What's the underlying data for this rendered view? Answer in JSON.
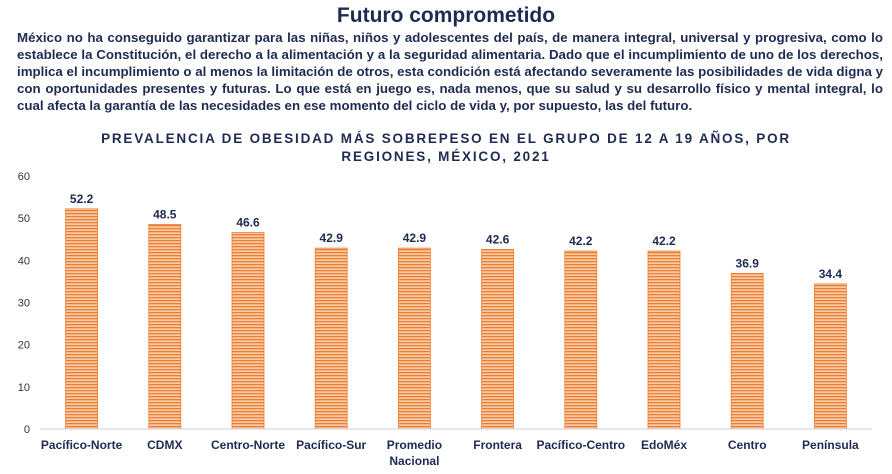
{
  "header": {
    "title": "Futuro comprometido",
    "paragraph": "México no ha conseguido garantizar para las niñas, niños y adolescentes del país, de manera integral, universal y progresiva, como lo establece la Constitución, el derecho a la alimentación y a la seguridad alimentaria. Dado que el incumplimiento de uno de los derechos, implica el incumplimiento o al menos la limitación de otros, esta condición está afectando severamente las posibilidades de vida digna y con oportunidades presentes y futuras. Lo que está en juego es, nada menos, que su salud y su desarrollo físico y mental integral, lo cual afecta la garantía de las necesidades en ese momento del ciclo de vida y, por supuesto, las del futuro."
  },
  "chart_data": {
    "type": "bar",
    "title": "PREVALENCIA DE OBESIDAD MÁS SOBREPESO EN EL GRUPO DE 12 A 19 AÑOS, POR REGIONES, MÉXICO, 2021",
    "categories": [
      "Pacífico-Norte",
      "CDMX",
      "Centro-Norte",
      "Pacífico-Sur",
      "Promedio Nacional",
      "Frontera",
      "Pacífico-Centro",
      "EdoMéx",
      "Centro",
      "Península"
    ],
    "values": [
      52.2,
      48.5,
      46.6,
      42.9,
      42.9,
      42.6,
      42.2,
      42.2,
      36.9,
      34.4
    ],
    "data_labels": [
      "52.2",
      "48.5",
      "46.6",
      "42.9",
      "42.9",
      "42.6",
      "42.2",
      "42.2",
      "36.9",
      "34.4"
    ],
    "yticks": [
      0,
      10,
      20,
      30,
      40,
      50,
      60
    ],
    "ylim": [
      0,
      60
    ],
    "xlabel": "",
    "ylabel": "",
    "grid": false,
    "legend": "none",
    "colors": {
      "bar_fill": "#f8cba8",
      "bar_stripe": "#ed7d31",
      "text": "#1f2a52",
      "axis": "#d0d0d0"
    }
  }
}
